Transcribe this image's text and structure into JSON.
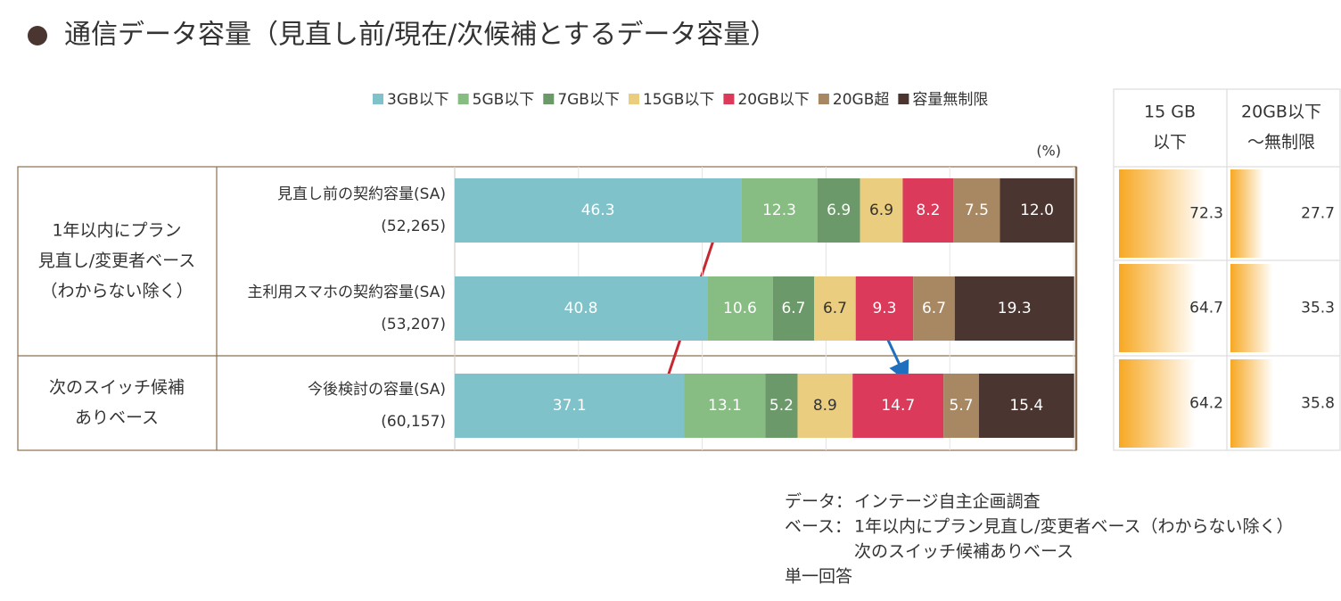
{
  "chart_data": {
    "type": "stacked-bar",
    "title": "通信データ容量（見直し前/現在/次候補とするデータ容量）",
    "unit": "(%)",
    "groups": [
      {
        "lines": [
          "1年以内にプラン",
          "見直し/変更者ベース",
          "（わからない除く）"
        ],
        "rows": 2
      },
      {
        "lines": [
          "次のスイッチ候補",
          "ありベース"
        ],
        "rows": 1
      }
    ],
    "categories": [
      "見直し前の契約容量(SA)",
      "主利用スマホの契約容量(SA)",
      "今後検討の容量(SA)"
    ],
    "n_labels": [
      "(52,265)",
      "(53,207)",
      "(60,157)"
    ],
    "series": [
      {
        "name": "3GB以下",
        "color": "#80c2c9",
        "label_color": "#ffffff",
        "values": [
          46.3,
          40.8,
          37.1
        ]
      },
      {
        "name": "5GB以下",
        "color": "#87bc83",
        "label_color": "#ffffff",
        "values": [
          12.3,
          10.6,
          13.1
        ]
      },
      {
        "name": "7GB以下",
        "color": "#6c9969",
        "label_color": "#ffffff",
        "values": [
          6.9,
          6.7,
          5.2
        ]
      },
      {
        "name": "15GB以下",
        "color": "#ebcd7f",
        "label_color": "#333333",
        "values": [
          6.9,
          6.7,
          8.9
        ]
      },
      {
        "name": "20GB以下",
        "color": "#dc3a5b",
        "label_color": "#ffffff",
        "values": [
          8.2,
          9.3,
          14.7
        ]
      },
      {
        "name": "20GB超",
        "color": "#a88862",
        "label_color": "#ffffff",
        "values": [
          7.5,
          6.7,
          5.7
        ]
      },
      {
        "name": "容量無制限",
        "color": "#4a3530",
        "label_color": "#ffffff",
        "values": [
          12.0,
          19.3,
          15.4
        ],
        "value_labels": [
          "12.0",
          "19.3",
          "15.4"
        ]
      }
    ],
    "xlim": [
      0,
      100
    ],
    "xticks": [
      0,
      20,
      40,
      60,
      80,
      100
    ],
    "grid": true
  },
  "side_table": {
    "headers": [
      [
        "15 GB",
        "以下"
      ],
      [
        "20GB以下",
        "～無制限"
      ]
    ],
    "values": [
      [
        72.3,
        27.7
      ],
      [
        64.7,
        35.3
      ],
      [
        64.2,
        35.8
      ]
    ],
    "xlim": [
      0,
      100
    ],
    "color": "#f7a823"
  },
  "notes": [
    {
      "label": "データ：",
      "text": "インテージ自主企画調査"
    },
    {
      "label": "ベース：",
      "text": "1年以内にプラン見直し/変更者ベース（わからない除く）"
    },
    {
      "text": "次のスイッチ候補ありベース"
    },
    {
      "label": "単一回答"
    }
  ]
}
